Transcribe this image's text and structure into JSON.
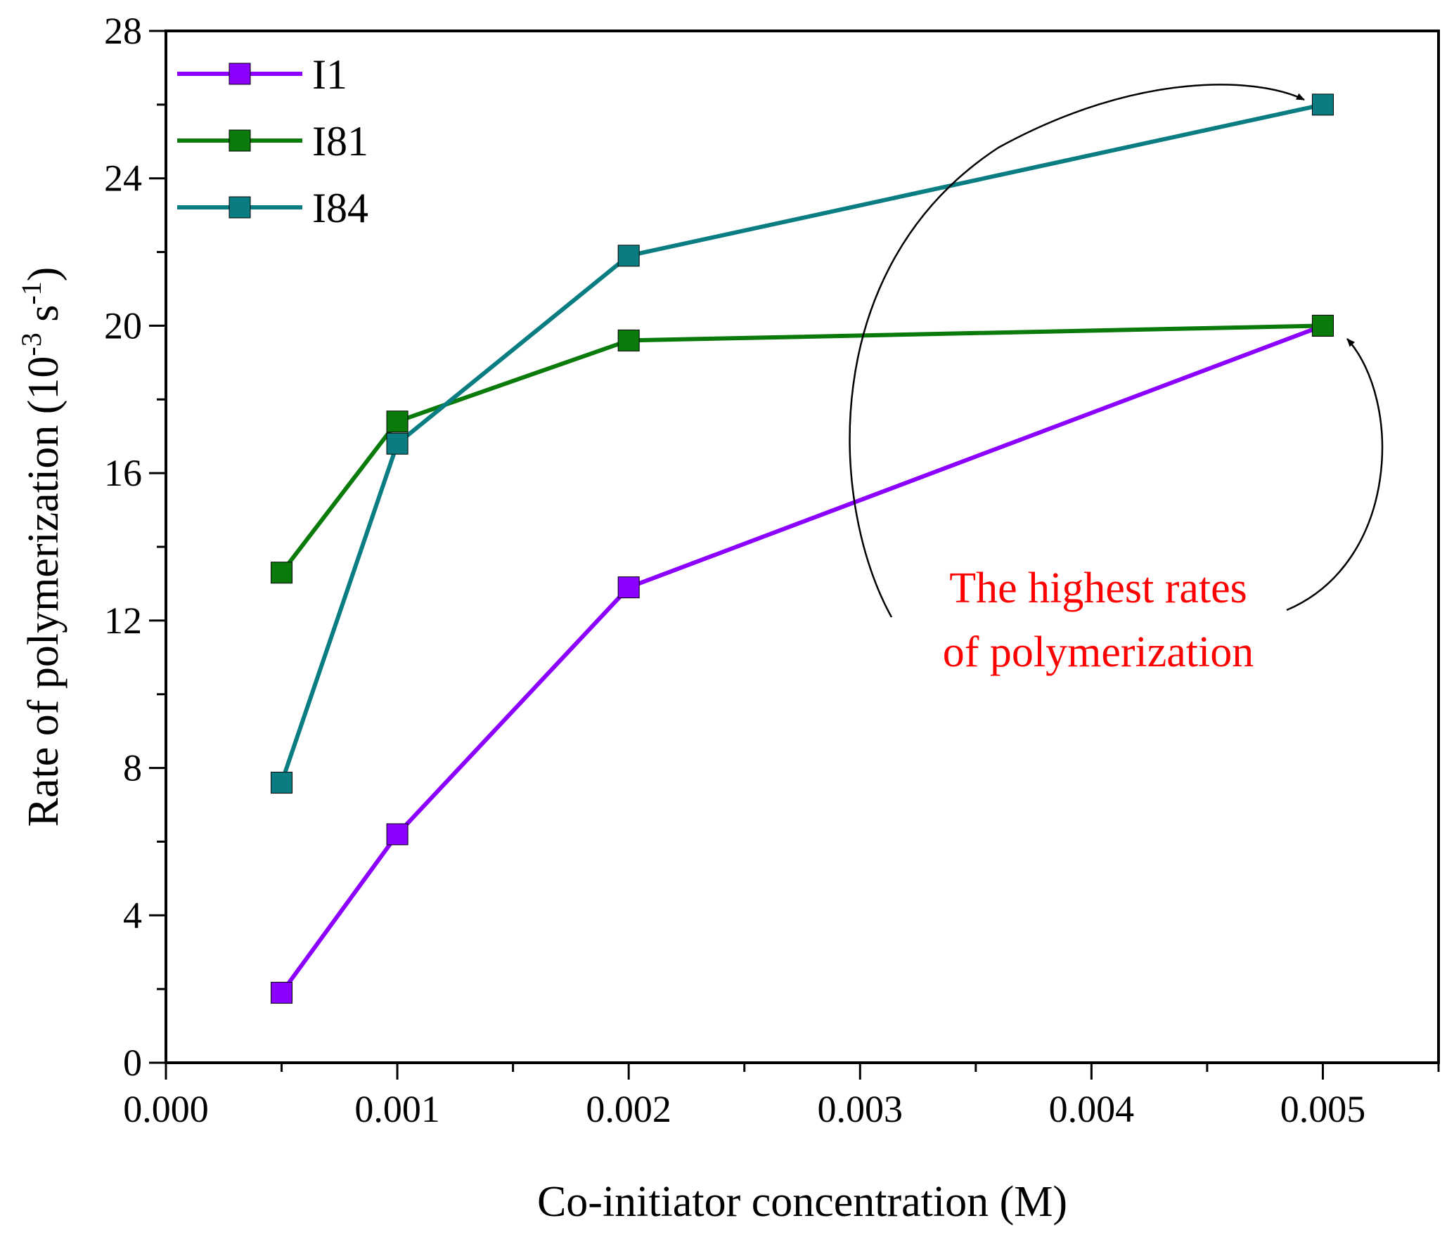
{
  "chart_data": {
    "type": "line",
    "title": "",
    "xlabel": "Co-initiator concentration (M)",
    "ylabel": {
      "main": "Rate of polymerization (10",
      "exp1": "-3",
      "mid": " s",
      "exp2": "-1",
      "end": ")"
    },
    "xlim": [
      0,
      0.0055
    ],
    "ylim": [
      0,
      28
    ],
    "x_ticks": [
      0,
      0.001,
      0.002,
      0.003,
      0.004,
      0.005
    ],
    "x_tick_labels": [
      "0.000",
      "0.001",
      "0.002",
      "0.003",
      "0.004",
      "0.005"
    ],
    "y_ticks": [
      0,
      4,
      8,
      12,
      16,
      20,
      24,
      28
    ],
    "y_tick_labels": [
      "0",
      "4",
      "8",
      "12",
      "16",
      "20",
      "24",
      "28"
    ],
    "x": [
      0.0005,
      0.001,
      0.002,
      0.005
    ],
    "series": [
      {
        "name": "I1",
        "color": "#8b00ff",
        "values": [
          1.9,
          6.2,
          12.9,
          20.0
        ]
      },
      {
        "name": "I81",
        "color": "#0a7a0a",
        "values": [
          13.3,
          17.4,
          19.6,
          20.0
        ]
      },
      {
        "name": "I84",
        "color": "#0a7d82",
        "values": [
          7.6,
          16.8,
          21.9,
          26.0
        ]
      }
    ],
    "legend_position": "top-left",
    "annotation": {
      "lines": [
        "The highest rates",
        "of polymerization"
      ],
      "color": "#ff0000"
    }
  }
}
